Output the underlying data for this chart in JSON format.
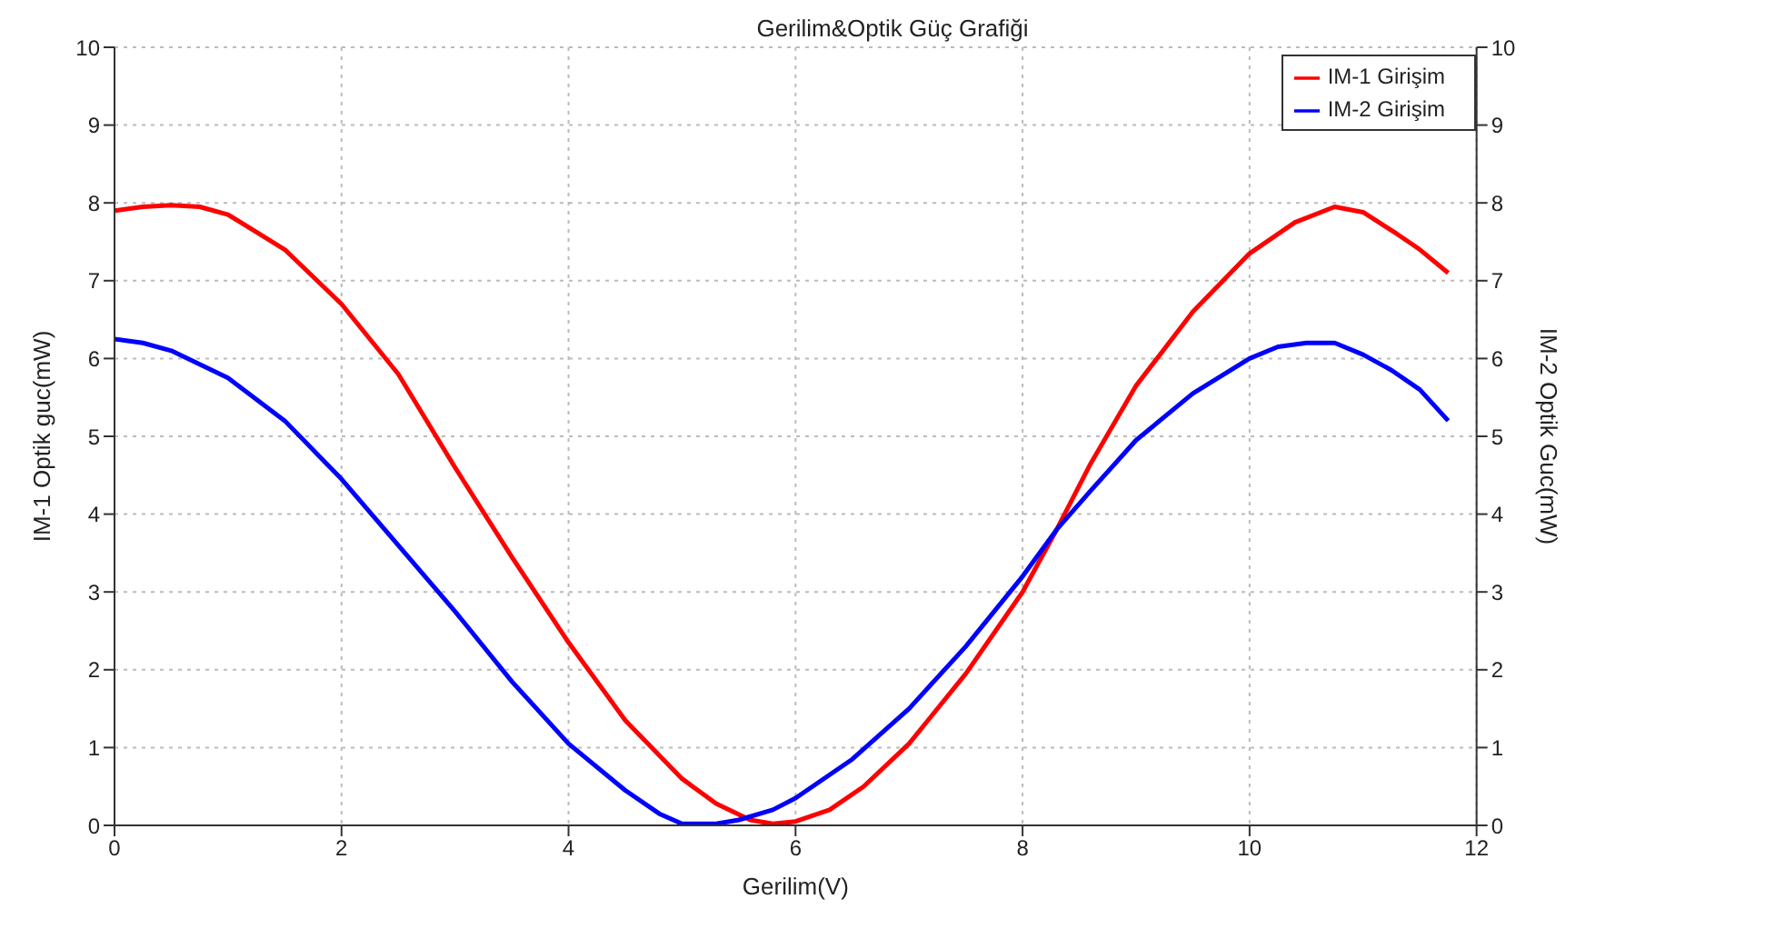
{
  "chart_data": {
    "type": "line",
    "title": "Gerilim&Optik Güç Grafiği",
    "xlabel": "Gerilim(V)",
    "ylabel": "IM-1 Optik guc(mW)",
    "y2label": "IM-2 Optik Guc(mW)",
    "series": [
      {
        "name": "IM-1 Girişim",
        "color": "#ff0000",
        "x": [
          0,
          0.25,
          0.5,
          0.75,
          1,
          1.5,
          2,
          2.5,
          3,
          3.5,
          4,
          4.5,
          5,
          5.3,
          5.6,
          5.8,
          6,
          6.3,
          6.6,
          7,
          7.5,
          8,
          8.3,
          8.6,
          9,
          9.5,
          10,
          10.4,
          10.75,
          11,
          11.3,
          11.5,
          11.75
        ],
        "values": [
          7.9,
          7.95,
          7.97,
          7.95,
          7.85,
          7.4,
          6.7,
          5.8,
          4.6,
          3.45,
          2.35,
          1.35,
          0.6,
          0.28,
          0.07,
          0.02,
          0.05,
          0.2,
          0.5,
          1.05,
          1.95,
          3.0,
          3.8,
          4.65,
          5.65,
          6.6,
          7.35,
          7.75,
          7.95,
          7.88,
          7.6,
          7.4,
          7.1
        ]
      },
      {
        "name": "IM-2 Girişim",
        "color": "#0000ff",
        "axis": "y2",
        "x": [
          0,
          0.25,
          0.5,
          1,
          1.5,
          2,
          2.5,
          3,
          3.5,
          4,
          4.5,
          4.8,
          5,
          5.3,
          5.5,
          5.8,
          6,
          6.5,
          7,
          7.5,
          8,
          8.3,
          8.6,
          9,
          9.5,
          10,
          10.25,
          10.5,
          10.75,
          11,
          11.25,
          11.5,
          11.75
        ],
        "values": [
          6.25,
          6.2,
          6.1,
          5.75,
          5.2,
          4.45,
          3.6,
          2.75,
          1.85,
          1.05,
          0.45,
          0.15,
          0.02,
          0.02,
          0.07,
          0.2,
          0.35,
          0.85,
          1.5,
          2.3,
          3.2,
          3.8,
          4.3,
          4.95,
          5.55,
          6.0,
          6.15,
          6.2,
          6.2,
          6.05,
          5.85,
          5.6,
          5.2
        ]
      }
    ],
    "xlim": [
      0,
      12
    ],
    "xticks": [
      0,
      2,
      4,
      6,
      8,
      10,
      12
    ],
    "ylim": [
      0,
      10
    ],
    "yticks": [
      0,
      1,
      2,
      3,
      4,
      5,
      6,
      7,
      8,
      9,
      10
    ],
    "y2lim": [
      0,
      10
    ],
    "y2ticks": [
      0,
      1,
      2,
      3,
      4,
      5,
      6,
      7,
      8,
      9,
      10
    ],
    "grid": true,
    "legend": "top right",
    "marker": "none",
    "line_style": "solid"
  }
}
